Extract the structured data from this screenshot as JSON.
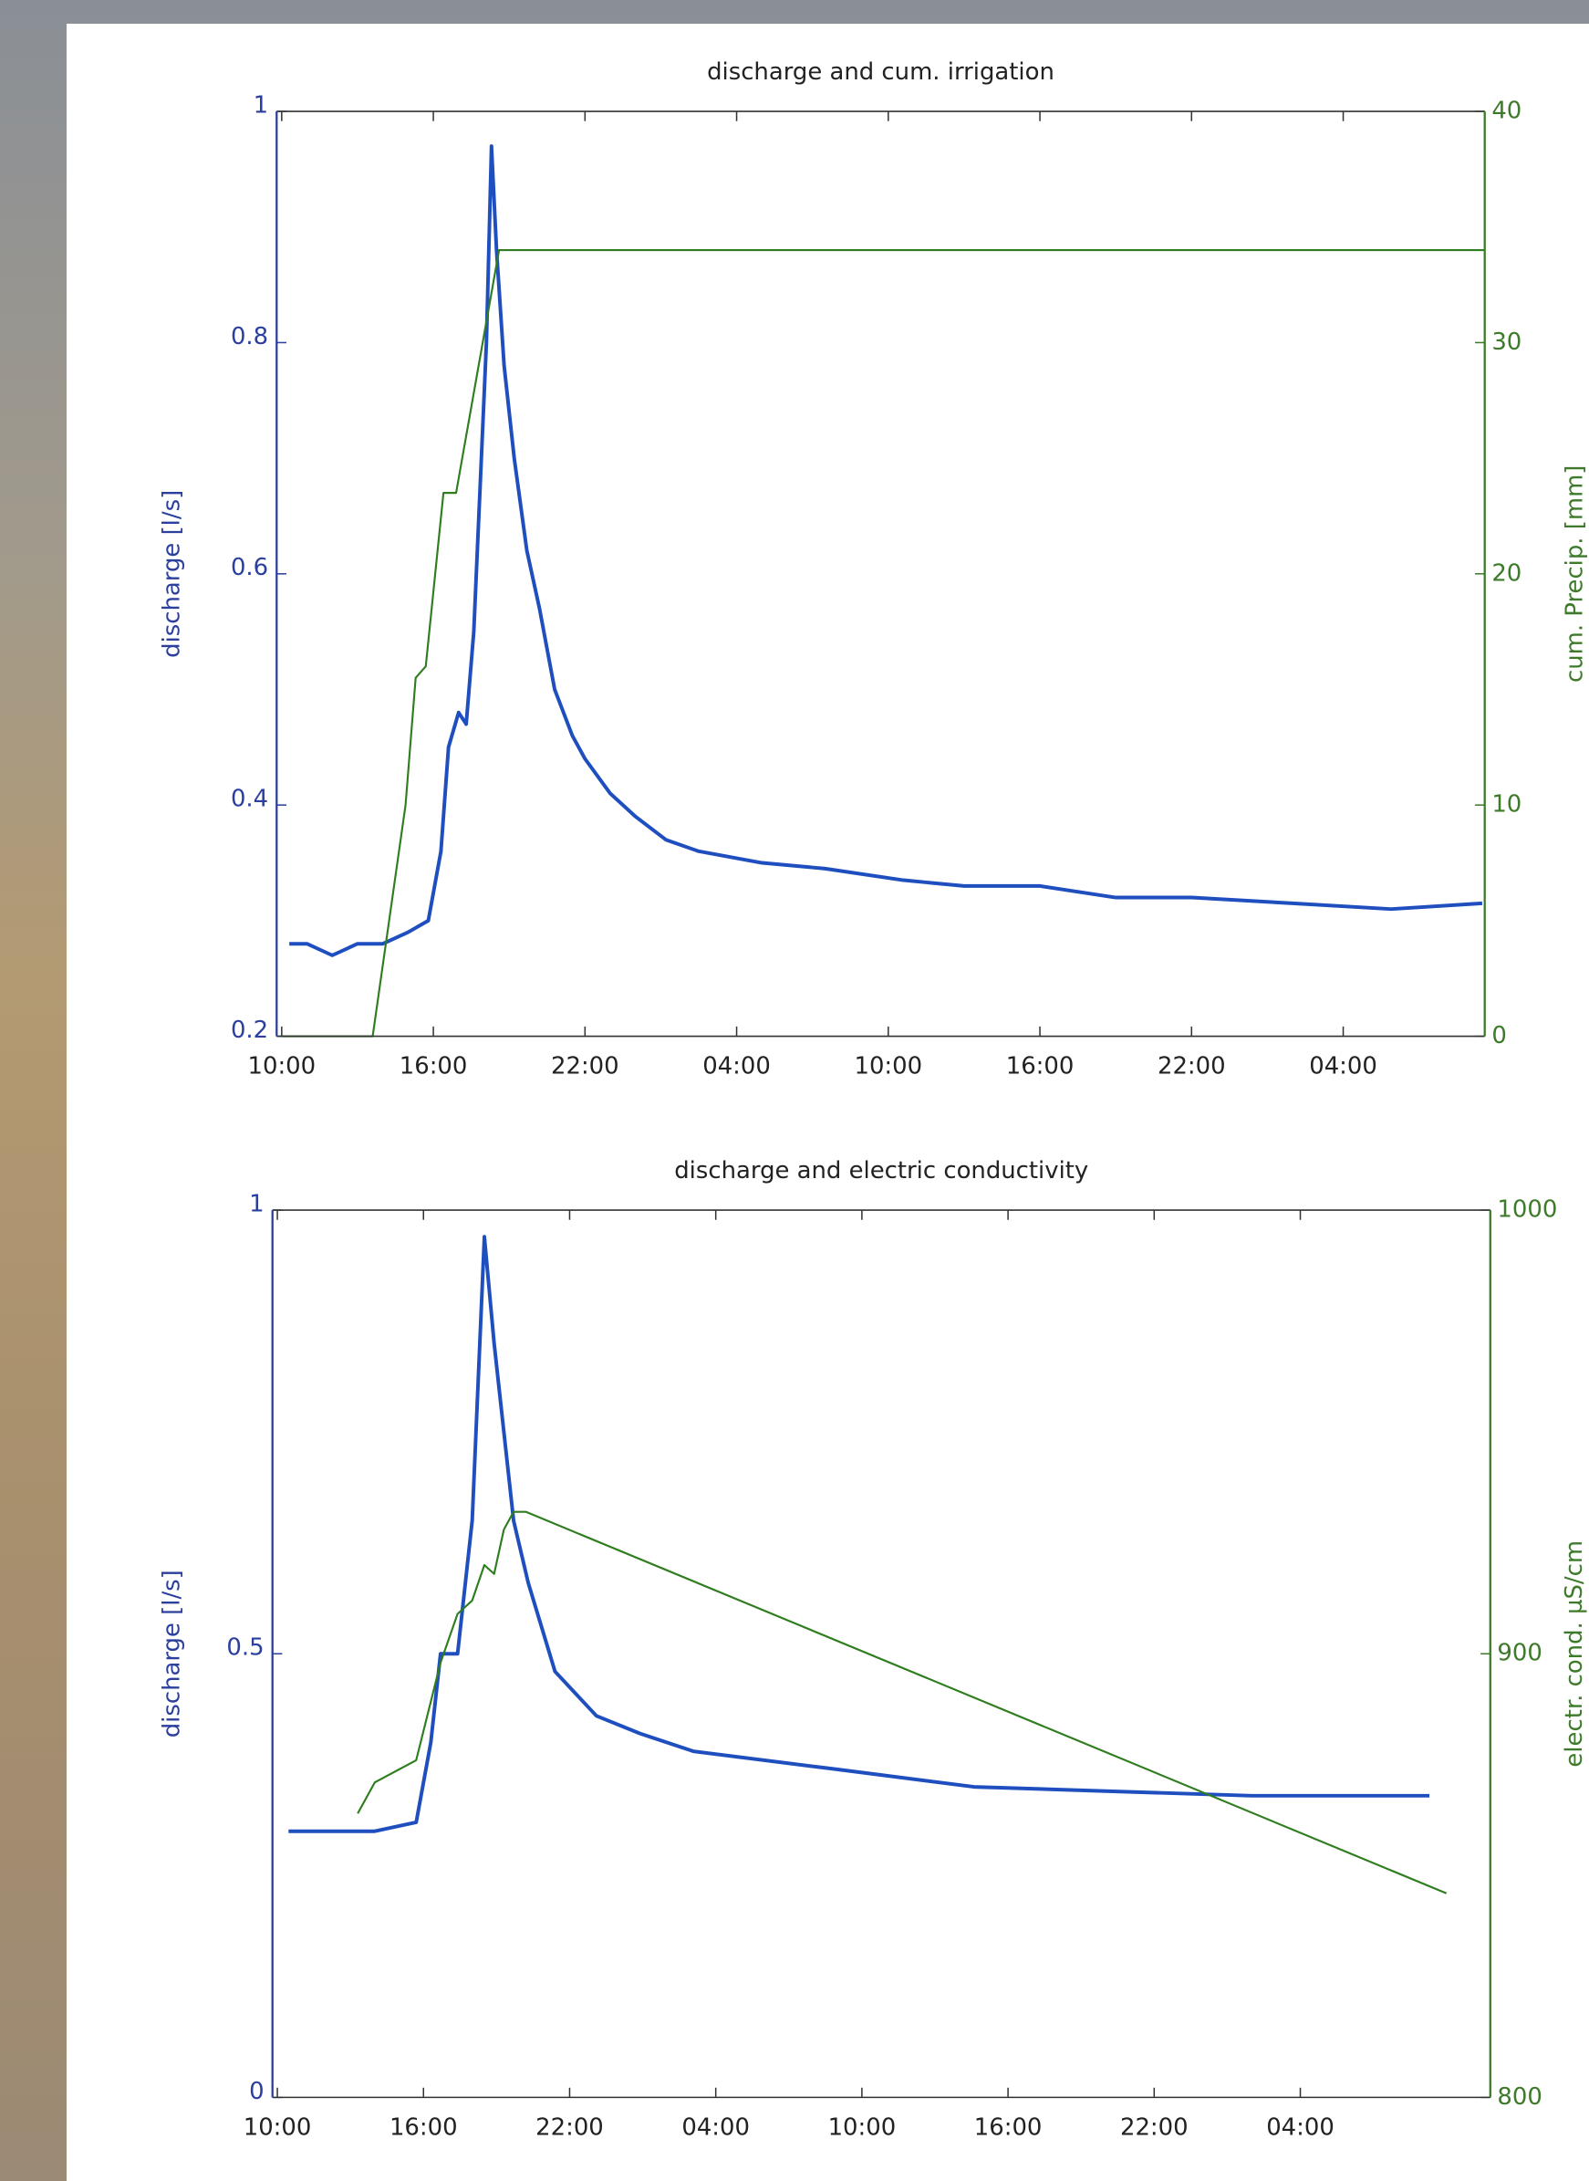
{
  "chart_data": [
    {
      "type": "line",
      "title": "discharge and cum. irrigation",
      "ylabel": "discharge [l/s]",
      "y2label": "cum. Precip. [mm]",
      "xlim": [
        -0.2,
        47.6
      ],
      "xticks": [
        {
          "value": 0,
          "label": "10:00"
        },
        {
          "value": 6,
          "label": "16:00"
        },
        {
          "value": 12,
          "label": "22:00"
        },
        {
          "value": 18,
          "label": "04:00"
        },
        {
          "value": 24,
          "label": "10:00"
        },
        {
          "value": 30,
          "label": "16:00"
        },
        {
          "value": 36,
          "label": "22:00"
        },
        {
          "value": 42,
          "label": "04:00"
        }
      ],
      "ylim": [
        0.2,
        1
      ],
      "yticks": [
        0.2,
        0.4,
        0.6,
        0.8,
        1
      ],
      "y2lim": [
        0,
        40
      ],
      "y2ticks": [
        0,
        10,
        20,
        30,
        40
      ],
      "series": [
        {
          "color": "#1f4fbf",
          "axis": "y",
          "x": [
            0.3,
            1,
            2,
            3,
            4,
            5,
            5.8,
            6.3,
            6.6,
            7,
            7.3,
            7.6,
            7.9,
            8.1,
            8.3,
            8.5,
            8.8,
            9.2,
            9.7,
            10.2,
            10.8,
            11.5,
            12,
            13,
            14,
            15.2,
            16.5,
            19,
            21.5,
            24.6,
            27,
            30,
            33,
            36,
            40,
            43.9,
            47.5
          ],
          "values": [
            0.28,
            0.28,
            0.27,
            0.28,
            0.28,
            0.29,
            0.3,
            0.36,
            0.45,
            0.48,
            0.47,
            0.55,
            0.7,
            0.8,
            0.97,
            0.88,
            0.78,
            0.7,
            0.62,
            0.57,
            0.5,
            0.46,
            0.44,
            0.41,
            0.39,
            0.37,
            0.36,
            0.35,
            0.345,
            0.335,
            0.33,
            0.33,
            0.32,
            0.32,
            0.315,
            0.31,
            0.315
          ]
        },
        {
          "color": "#2e7d1e",
          "axis": "y2",
          "x": [
            0,
            3.6,
            4.9,
            5.3,
            5.7,
            6.4,
            6.9,
            8.6,
            47.6
          ],
          "values": [
            0,
            0,
            10,
            15.5,
            16,
            23.5,
            23.5,
            34,
            34
          ]
        }
      ]
    },
    {
      "type": "line",
      "title": "discharge and electric conductivity",
      "ylabel": "discharge [l/s]",
      "y2label": "electr. cond. µS/cm",
      "xlim": [
        -0.2,
        49.8
      ],
      "xticks": [
        {
          "value": 0,
          "label": "10:00"
        },
        {
          "value": 6,
          "label": "16:00"
        },
        {
          "value": 12,
          "label": "22:00"
        },
        {
          "value": 18,
          "label": "04:00"
        },
        {
          "value": 24,
          "label": "10:00"
        },
        {
          "value": 30,
          "label": "16:00"
        },
        {
          "value": 36,
          "label": "22:00"
        },
        {
          "value": 42,
          "label": "04:00"
        }
      ],
      "ylim": [
        0,
        1
      ],
      "yticks": [
        0,
        0.5,
        1
      ],
      "y2lim": [
        800,
        1000
      ],
      "y2ticks": [
        800,
        900,
        1000
      ],
      "series": [
        {
          "color": "#1f4fbf",
          "axis": "y",
          "x": [
            0.46,
            2,
            4,
            5.7,
            6.3,
            6.7,
            7.4,
            8,
            8.5,
            8.9,
            9.3,
            9.7,
            10.3,
            11.4,
            13.1,
            14.9,
            17.1,
            22.9,
            28.6,
            34.3,
            40,
            47.3
          ],
          "values": [
            0.3,
            0.3,
            0.3,
            0.31,
            0.4,
            0.5,
            0.5,
            0.65,
            0.97,
            0.85,
            0.75,
            0.65,
            0.58,
            0.48,
            0.43,
            0.41,
            0.39,
            0.37,
            0.35,
            0.345,
            0.34,
            0.34
          ]
        },
        {
          "color": "#2e7d1e",
          "axis": "y2",
          "x": [
            3.3,
            4,
            5.7,
            6.7,
            7.4,
            8,
            8.5,
            8.9,
            9.3,
            9.7,
            10.2,
            48
          ],
          "values": [
            864,
            871,
            876,
            898,
            909,
            912,
            920,
            918,
            928,
            932,
            932,
            846
          ]
        }
      ]
    }
  ]
}
